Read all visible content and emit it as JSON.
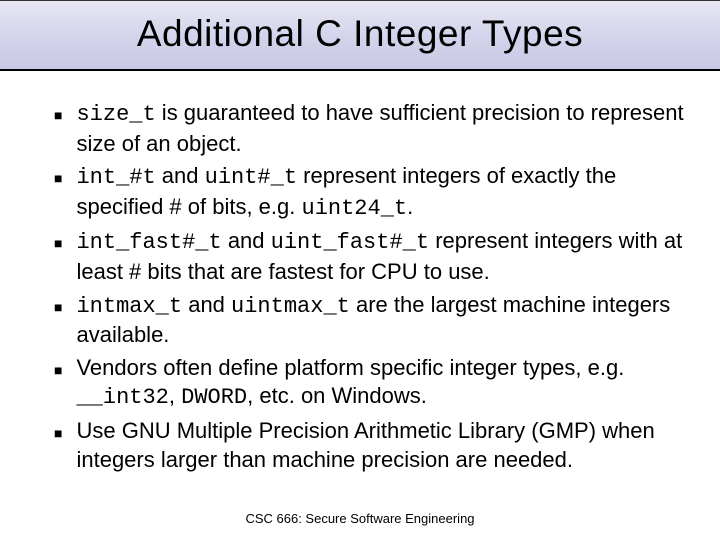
{
  "title": "Additional C Integer Types",
  "bullets": [
    {
      "segments": [
        {
          "text": "size_t",
          "code": true
        },
        {
          "text": " is guaranteed to have sufficient precision to represent size of an object.",
          "code": false
        }
      ]
    },
    {
      "segments": [
        {
          "text": "int_#t",
          "code": true
        },
        {
          "text": " and ",
          "code": false
        },
        {
          "text": "uint#_t",
          "code": true
        },
        {
          "text": " represent integers of exactly the specified # of bits, e.g. ",
          "code": false
        },
        {
          "text": "uint24_t",
          "code": true
        },
        {
          "text": ".",
          "code": false
        }
      ]
    },
    {
      "segments": [
        {
          "text": "int_fast#_t",
          "code": true
        },
        {
          "text": " and ",
          "code": false
        },
        {
          "text": "uint_fast#_t",
          "code": true
        },
        {
          "text": " represent integers with at least # bits that are fastest for CPU to use.",
          "code": false
        }
      ]
    },
    {
      "segments": [
        {
          "text": "intmax_t",
          "code": true
        },
        {
          "text": " and ",
          "code": false
        },
        {
          "text": "uintmax_t",
          "code": true
        },
        {
          "text": " are the largest machine integers available.",
          "code": false
        }
      ]
    },
    {
      "segments": [
        {
          "text": "Vendors often define platform specific integer types, e.g. ",
          "code": false
        },
        {
          "text": "__int32",
          "code": true
        },
        {
          "text": ", ",
          "code": false
        },
        {
          "text": "DWORD",
          "code": true
        },
        {
          "text": ", etc. on Windows.",
          "code": false
        }
      ]
    },
    {
      "segments": [
        {
          "text": "Use GNU Multiple Precision Arithmetic Library (GMP) when integers larger than machine precision are needed.",
          "code": false
        }
      ]
    }
  ],
  "footer": "CSC 666: Secure Software Engineering",
  "styles": {
    "title_bg_colors": [
      "#e8e8f4",
      "#d4d4ec",
      "#c8c8e4"
    ],
    "title_fontsize": 37,
    "body_fontsize": 22,
    "footer_fontsize": 13,
    "bullet_marker": "■",
    "code_font": "Courier New",
    "body_font": "Arial",
    "text_color": "#000000",
    "bg_color": "#ffffff"
  }
}
